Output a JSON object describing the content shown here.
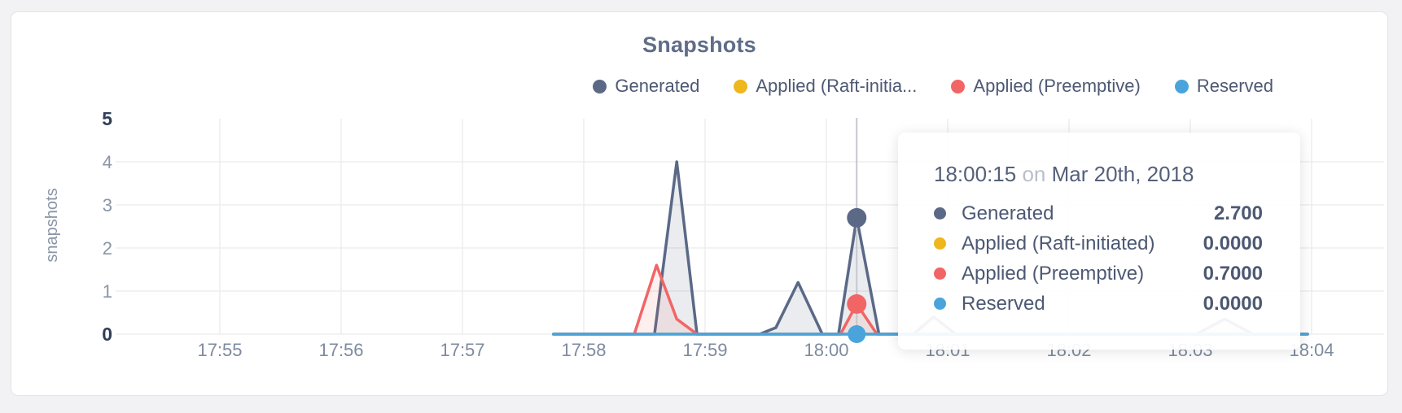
{
  "chart_data": {
    "type": "area",
    "title": "Snapshots",
    "xlabel": "",
    "ylabel": "snapshots",
    "ylim": [
      0,
      5
    ],
    "yticks": [
      0,
      1,
      2,
      3,
      4,
      5
    ],
    "ytick_bold": [
      0,
      5
    ],
    "xticks": [
      "17:55",
      "17:56",
      "17:57",
      "17:58",
      "17:59",
      "18:00",
      "18:01",
      "18:02",
      "18:03",
      "18:04"
    ],
    "grid": true,
    "legend_position": "top-right",
    "crosshair_time": "18:00:15",
    "series": [
      {
        "name": "Generated",
        "legend_label": "Generated",
        "color": "#5b6987",
        "fill": "rgba(91,105,135,0.13)",
        "points": [
          [
            "17:57:45",
            0
          ],
          [
            "17:58:35",
            0
          ],
          [
            "17:58:46",
            4.0
          ],
          [
            "17:58:56",
            0
          ],
          [
            "17:59:27",
            0
          ],
          [
            "17:59:35",
            0.15
          ],
          [
            "17:59:46",
            1.2
          ],
          [
            "17:59:58",
            0
          ],
          [
            "18:00:06",
            0
          ],
          [
            "18:00:15",
            2.7
          ],
          [
            "18:00:26",
            0
          ],
          [
            "18:00:43",
            0
          ],
          [
            "18:00:53",
            0.4
          ],
          [
            "18:01:04",
            0
          ],
          [
            "18:03:03",
            0
          ],
          [
            "18:03:17",
            0.35
          ],
          [
            "18:03:31",
            0
          ],
          [
            "18:03:58",
            0
          ]
        ]
      },
      {
        "name": "Applied (Raft-initiated)",
        "legend_label": "Applied (Raft-initia...",
        "color": "#efb71c",
        "fill": null,
        "points": [
          [
            "17:57:45",
            0
          ],
          [
            "18:03:58",
            0
          ]
        ]
      },
      {
        "name": "Applied (Preemptive)",
        "legend_label": "Applied (Preemptive)",
        "color": "#f26565",
        "fill": "rgba(242,101,101,0.10)",
        "points": [
          [
            "17:57:45",
            0
          ],
          [
            "17:58:25",
            0
          ],
          [
            "17:58:36",
            1.6
          ],
          [
            "17:58:46",
            0.35
          ],
          [
            "17:58:56",
            0
          ],
          [
            "18:00:07",
            0
          ],
          [
            "18:00:15",
            0.7
          ],
          [
            "18:00:25",
            0
          ],
          [
            "18:03:58",
            0
          ]
        ]
      },
      {
        "name": "Reserved",
        "legend_label": "Reserved",
        "color": "#4aa4db",
        "fill": null,
        "points": [
          [
            "17:57:45",
            0
          ],
          [
            "18:03:58",
            0
          ]
        ]
      }
    ],
    "markers": [
      {
        "series": "Generated",
        "time": "18:00:15",
        "value": 2.7
      },
      {
        "series": "Applied (Preemptive)",
        "time": "18:00:15",
        "value": 0.7
      },
      {
        "series": "Reserved",
        "time": "18:00:15",
        "value": 0
      }
    ]
  },
  "tooltip": {
    "time": "18:00:15",
    "conjunction": "on",
    "date": "Mar 20th, 2018",
    "rows": [
      {
        "label": "Generated",
        "value": "2.700",
        "color": "#5b6987"
      },
      {
        "label": "Applied (Raft-initiated)",
        "value": "0.0000",
        "color": "#efb71c"
      },
      {
        "label": "Applied (Preemptive)",
        "value": "0.7000",
        "color": "#f26565"
      },
      {
        "label": "Reserved",
        "value": "0.0000",
        "color": "#4aa4db"
      }
    ]
  },
  "colors": {
    "title": "#5f6d88",
    "tick_major": "#2f3e59",
    "tick_minor": "#8a95a7",
    "x_tick": "#7e8b9f",
    "gridline": "#ededef",
    "crosshair": "#c5c8ce",
    "card_background": "#ffffff",
    "page_background": "#f2f2f4"
  }
}
